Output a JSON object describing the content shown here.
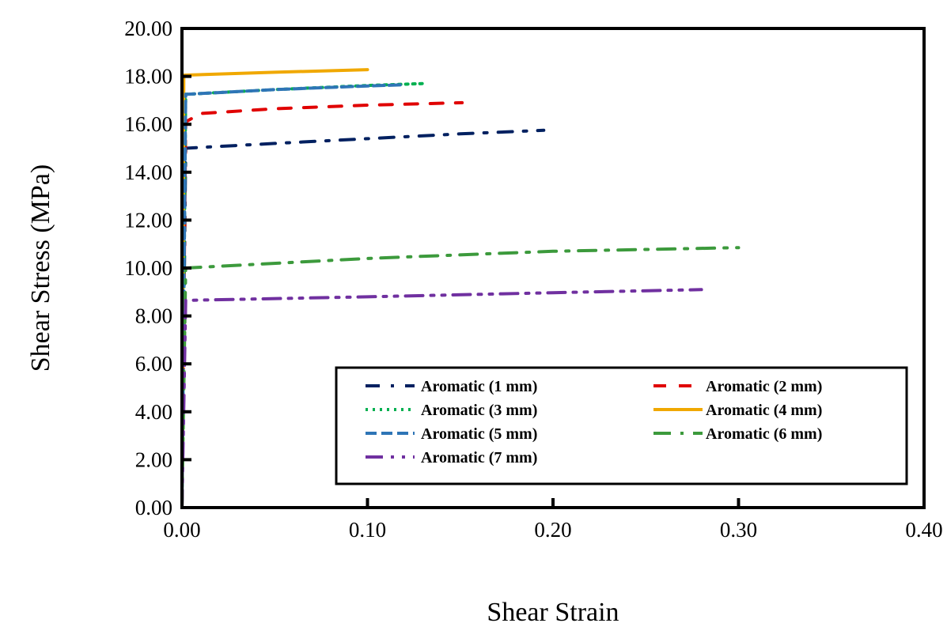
{
  "chart_data": {
    "type": "line",
    "title": "",
    "xlabel": "Shear Strain",
    "ylabel": "Shear Stress (MPa)",
    "xlim": [
      0,
      0.4
    ],
    "ylim": [
      0,
      20
    ],
    "xticks": [
      "0.00",
      "0.10",
      "0.20",
      "0.30",
      "0.40"
    ],
    "yticks": [
      "0.00",
      "2.00",
      "4.00",
      "6.00",
      "8.00",
      "10.00",
      "12.00",
      "14.00",
      "16.00",
      "18.00",
      "20.00"
    ],
    "grid": false,
    "legend_placement": "bottom-right",
    "series": [
      {
        "name": "Aromatic (1 mm)",
        "color": "#002060",
        "dash": "dash-dot",
        "points": [
          [
            0,
            0
          ],
          [
            0.002,
            15.0
          ],
          [
            0.05,
            15.2
          ],
          [
            0.1,
            15.4
          ],
          [
            0.15,
            15.6
          ],
          [
            0.195,
            15.75
          ]
        ]
      },
      {
        "name": "Aromatic (2 mm)",
        "color": "#e00000",
        "dash": "dash",
        "points": [
          [
            0,
            0
          ],
          [
            0.002,
            16.1
          ],
          [
            0.01,
            16.45
          ],
          [
            0.05,
            16.65
          ],
          [
            0.1,
            16.8
          ],
          [
            0.151,
            16.9
          ]
        ]
      },
      {
        "name": "Aromatic (3 mm)",
        "color": "#00b050",
        "dash": "dot",
        "points": [
          [
            0,
            0
          ],
          [
            0.002,
            17.25
          ],
          [
            0.05,
            17.45
          ],
          [
            0.1,
            17.62
          ],
          [
            0.13,
            17.7
          ]
        ]
      },
      {
        "name": "Aromatic (4 mm)",
        "color": "#f0a800",
        "dash": "solid",
        "points": [
          [
            0,
            0
          ],
          [
            0.001,
            18.05
          ],
          [
            0.05,
            18.17
          ],
          [
            0.1,
            18.28
          ]
        ]
      },
      {
        "name": "Aromatic (5 mm)",
        "color": "#2e75b6",
        "dash": "long-dash",
        "points": [
          [
            0,
            0
          ],
          [
            0.002,
            17.25
          ],
          [
            0.05,
            17.45
          ],
          [
            0.1,
            17.6
          ],
          [
            0.12,
            17.65
          ]
        ]
      },
      {
        "name": "Aromatic (6 mm)",
        "color": "#3c9a3c",
        "dash": "long-dash-dot",
        "points": [
          [
            0,
            0
          ],
          [
            0.002,
            10.0
          ],
          [
            0.1,
            10.4
          ],
          [
            0.2,
            10.7
          ],
          [
            0.3,
            10.85
          ]
        ]
      },
      {
        "name": "Aromatic (7 mm)",
        "color": "#7030a0",
        "dash": "long-dash-dot-dot",
        "points": [
          [
            0,
            0
          ],
          [
            0.002,
            8.65
          ],
          [
            0.1,
            8.8
          ],
          [
            0.2,
            8.97
          ],
          [
            0.28,
            9.1
          ]
        ]
      }
    ]
  }
}
